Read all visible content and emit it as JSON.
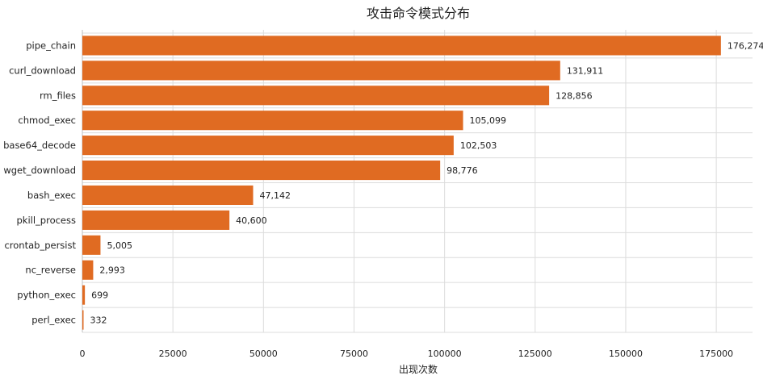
{
  "chart_data": {
    "type": "bar",
    "orientation": "horizontal",
    "title": "攻击命令模式分布",
    "xlabel": "出现次数",
    "ylabel": "",
    "categories": [
      "pipe_chain",
      "curl_download",
      "rm_files",
      "chmod_exec",
      "base64_decode",
      "wget_download",
      "bash_exec",
      "pkill_process",
      "crontab_persist",
      "nc_reverse",
      "python_exec",
      "perl_exec"
    ],
    "values": [
      176274,
      131911,
      128856,
      105099,
      102503,
      98776,
      47142,
      40600,
      5005,
      2993,
      699,
      332
    ],
    "value_labels": [
      "176,274",
      "131,911",
      "128,856",
      "105,099",
      "102,503",
      "98,776",
      "47,142",
      "40,600",
      "5,005",
      "2,993",
      "699",
      "332"
    ],
    "xlim": [
      0,
      185000
    ],
    "xticks": [
      0,
      25000,
      50000,
      75000,
      100000,
      125000,
      150000,
      175000
    ],
    "xtick_labels": [
      "0",
      "25000",
      "50000",
      "75000",
      "100000",
      "125000",
      "150000",
      "175000"
    ],
    "grid": true,
    "bar_color": "#e06b22"
  }
}
